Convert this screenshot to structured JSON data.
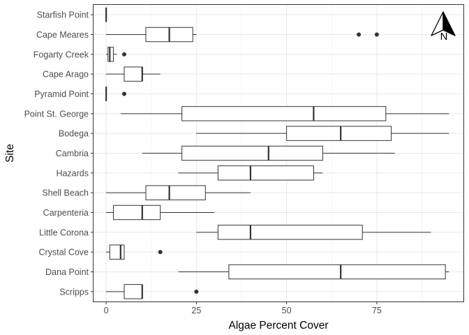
{
  "chart_data": {
    "type": "boxplot",
    "xlabel": "Algae Percent Cover",
    "ylabel": "Site",
    "xlim": [
      -3.5,
      99
    ],
    "xticks": [
      0,
      25,
      50,
      75
    ],
    "grid": true,
    "north_arrow": {
      "label": "N",
      "placement": "top-right"
    },
    "categories": [
      "Scripps",
      "Dana Point",
      "Crystal Cove",
      "Little Corona",
      "Carpenteria",
      "Shell Beach",
      "Hazards",
      "Cambria",
      "Bodega",
      "Point St. George",
      "Pyramid Point",
      "Cape Arago",
      "Fogarty Creek",
      "Cape Meares",
      "Starfish Point"
    ],
    "boxes": [
      {
        "site": "Scripps",
        "min": 0,
        "q1": 5,
        "median": 10,
        "q3": 10,
        "max": 10,
        "outliers": [
          25
        ]
      },
      {
        "site": "Dana Point",
        "min": 20,
        "q1": 34,
        "median": 65,
        "q3": 94,
        "max": 95,
        "outliers": []
      },
      {
        "site": "Crystal Cove",
        "min": 0,
        "q1": 1,
        "median": 4,
        "q3": 5,
        "max": 5,
        "outliers": [
          15
        ]
      },
      {
        "site": "Little Corona",
        "min": 25,
        "q1": 31,
        "median": 40,
        "q3": 71,
        "max": 90,
        "outliers": []
      },
      {
        "site": "Carpenteria",
        "min": 0,
        "q1": 2,
        "median": 10,
        "q3": 15,
        "max": 30,
        "outliers": []
      },
      {
        "site": "Shell Beach",
        "min": 0,
        "q1": 11,
        "median": 17.5,
        "q3": 27.5,
        "max": 40,
        "outliers": []
      },
      {
        "site": "Hazards",
        "min": 20,
        "q1": 31,
        "median": 40,
        "q3": 57.5,
        "max": 60,
        "outliers": []
      },
      {
        "site": "Cambria",
        "min": 10,
        "q1": 21,
        "median": 45,
        "q3": 60,
        "max": 80,
        "outliers": []
      },
      {
        "site": "Bodega",
        "min": 25,
        "q1": 50,
        "median": 65,
        "q3": 79,
        "max": 95,
        "outliers": []
      },
      {
        "site": "Point St. George",
        "min": 4,
        "q1": 21,
        "median": 57.5,
        "q3": 77.5,
        "max": 95,
        "outliers": []
      },
      {
        "site": "Pyramid Point",
        "min": 0,
        "q1": 0,
        "median": 0,
        "q3": 0,
        "max": 0,
        "outliers": [
          5
        ]
      },
      {
        "site": "Cape Arago",
        "min": 0,
        "q1": 5,
        "median": 10,
        "q3": 10,
        "max": 15,
        "outliers": []
      },
      {
        "site": "Fogarty Creek",
        "min": 0,
        "q1": 0.5,
        "median": 1,
        "q3": 2,
        "max": 3,
        "outliers": [
          5
        ]
      },
      {
        "site": "Cape Meares",
        "min": 0,
        "q1": 11,
        "median": 17.5,
        "q3": 24,
        "max": 25,
        "outliers": [
          70,
          75
        ]
      },
      {
        "site": "Starfish Point",
        "min": 0,
        "q1": 0,
        "median": 0,
        "q3": 0,
        "max": 0,
        "outliers": []
      }
    ]
  }
}
